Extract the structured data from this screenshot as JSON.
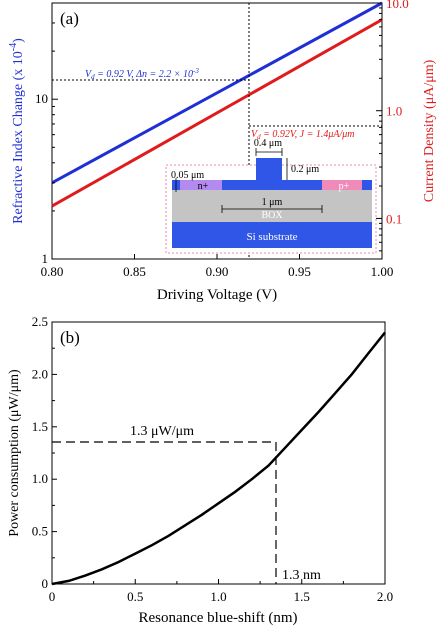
{
  "chart_data": [
    {
      "panel_label": "(a)",
      "type": "line",
      "xlabel": "Driving Voltage (V)",
      "ylabel_left": "Refractive Index Change (x 10",
      "ylabel_left_exp": "-4",
      "ylabel_left_close": ")",
      "ylabel_right": "Current Density (μA/μm)",
      "xlim": [
        0.8,
        1.0
      ],
      "ylim_left": [
        1,
        40
      ],
      "ylim_right": [
        0.042,
        10.0
      ],
      "yscale": "log",
      "x_ticks": [
        "0.80",
        "0.85",
        "0.90",
        "0.95",
        "1.00"
      ],
      "left_ticks": [
        "1",
        "10"
      ],
      "right_ticks": [
        "0.1",
        "1.0",
        "10.0"
      ],
      "series": [
        {
          "axis": "left",
          "color": "#1f2fd6",
          "x": [
            0.8,
            1.0
          ],
          "y": [
            3.0,
            40
          ]
        },
        {
          "axis": "right",
          "color": "#e01b1b",
          "x": [
            0.8,
            1.0
          ],
          "y": [
            0.13,
            7.0
          ]
        }
      ],
      "annotations": {
        "blue": {
          "vd_label": "V",
          "vd_sub": "d",
          "text": " = 0.92 V, Δn = 2.2 × 10",
          "exp": "-3",
          "x": 0.92,
          "y": 22
        },
        "red": {
          "vd_label": "V",
          "vd_sub": "d",
          "text": " = 0.92V, J = 1.4μA/μm",
          "x": 0.92,
          "y": 1.4
        }
      },
      "inset": {
        "w_top": "0.4 μm",
        "h_rib": "0.2 μm",
        "t_slab": "0.05 μm",
        "w_gap": "1 μm",
        "n_label": "n+",
        "p_label": "p+",
        "box_label": "BOX",
        "substrate_label": "Si substrate"
      },
      "colors": {
        "blue": "#1f2fd6",
        "red": "#e01b1b",
        "inset_border": "#e98ab0"
      }
    },
    {
      "panel_label": "(b)",
      "type": "line",
      "xlabel": "Resonance blue-shift (nm)",
      "ylabel": "Power consumption (μW/μm)",
      "xlim": [
        0,
        2.0
      ],
      "ylim": [
        0,
        2.5
      ],
      "x_ticks": [
        "0",
        "0.5",
        "1.0",
        "1.5",
        "2.0"
      ],
      "y_ticks": [
        "0",
        "0.5",
        "1.0",
        "1.5",
        "2.0",
        "2.5"
      ],
      "series": [
        {
          "color": "#000000",
          "x": [
            0,
            0.1,
            0.2,
            0.3,
            0.4,
            0.5,
            0.6,
            0.7,
            0.8,
            0.9,
            1.0,
            1.1,
            1.2,
            1.3,
            1.4,
            1.5,
            1.6,
            1.7,
            1.8,
            1.9,
            2.0
          ],
          "y": [
            0,
            0.03,
            0.08,
            0.14,
            0.21,
            0.29,
            0.37,
            0.46,
            0.56,
            0.66,
            0.77,
            0.88,
            1.0,
            1.13,
            1.3,
            1.47,
            1.64,
            1.82,
            2.0,
            2.2,
            2.4
          ]
        }
      ],
      "annotations": [
        {
          "text": "1.3 μW/μm",
          "x": 1.33,
          "y": 1.36
        },
        {
          "text": "1.3 nm",
          "x": 1.33,
          "y": 1.36
        }
      ]
    }
  ]
}
